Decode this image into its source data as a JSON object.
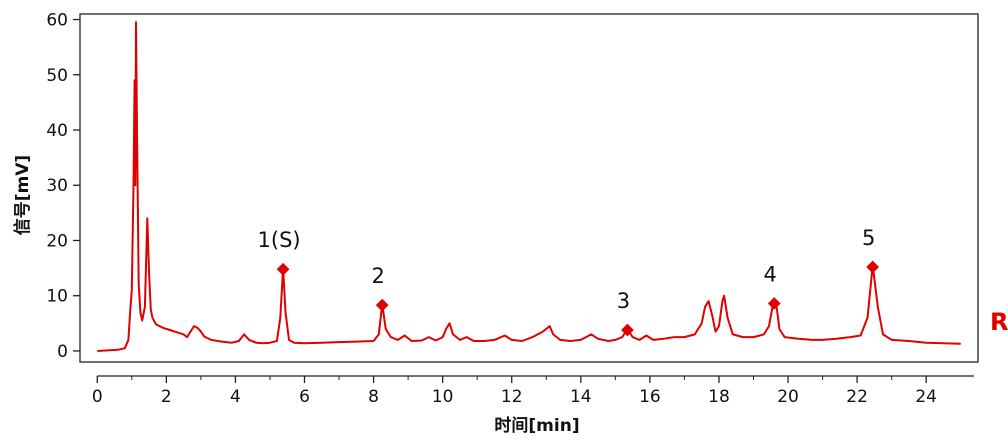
{
  "chart_data": {
    "type": "line",
    "title": "",
    "xlabel": "时间[min]",
    "ylabel": "信号[mV]",
    "xlim": [
      -0.5,
      25.5
    ],
    "ylim": [
      -2,
      61
    ],
    "x_ticks": [
      0,
      2,
      4,
      6,
      8,
      10,
      12,
      14,
      16,
      18,
      20,
      22,
      24
    ],
    "y_ticks": [
      0,
      10,
      20,
      30,
      40,
      50,
      60
    ],
    "grid": false,
    "line_color": "#e00000",
    "series": [
      {
        "values": [
          [
            0.0,
            0.0
          ],
          [
            0.3,
            0.1
          ],
          [
            0.6,
            0.2
          ],
          [
            0.8,
            0.5
          ],
          [
            0.9,
            2.0
          ],
          [
            0.95,
            7.0
          ],
          [
            1.0,
            11.0
          ],
          [
            1.05,
            30.0
          ],
          [
            1.08,
            49.0
          ],
          [
            1.1,
            30.0
          ],
          [
            1.12,
            59.5
          ],
          [
            1.15,
            40.0
          ],
          [
            1.2,
            12.0
          ],
          [
            1.25,
            7.0
          ],
          [
            1.3,
            5.5
          ],
          [
            1.38,
            8.0
          ],
          [
            1.45,
            24.0
          ],
          [
            1.5,
            14.0
          ],
          [
            1.55,
            7.5
          ],
          [
            1.6,
            6.0
          ],
          [
            1.7,
            4.8
          ],
          [
            1.9,
            4.2
          ],
          [
            2.1,
            3.8
          ],
          [
            2.3,
            3.4
          ],
          [
            2.5,
            3.0
          ],
          [
            2.6,
            2.5
          ],
          [
            2.7,
            3.5
          ],
          [
            2.8,
            4.5
          ],
          [
            2.9,
            4.2
          ],
          [
            3.0,
            3.5
          ],
          [
            3.1,
            2.6
          ],
          [
            3.3,
            2.0
          ],
          [
            3.6,
            1.7
          ],
          [
            3.9,
            1.5
          ],
          [
            4.1,
            1.8
          ],
          [
            4.25,
            3.0
          ],
          [
            4.4,
            2.0
          ],
          [
            4.6,
            1.5
          ],
          [
            4.8,
            1.4
          ],
          [
            5.0,
            1.5
          ],
          [
            5.2,
            1.8
          ],
          [
            5.3,
            6.0
          ],
          [
            5.38,
            15.0
          ],
          [
            5.45,
            7.0
          ],
          [
            5.55,
            2.0
          ],
          [
            5.7,
            1.5
          ],
          [
            6.0,
            1.4
          ],
          [
            6.5,
            1.5
          ],
          [
            7.0,
            1.6
          ],
          [
            7.5,
            1.7
          ],
          [
            8.0,
            1.8
          ],
          [
            8.15,
            3.0
          ],
          [
            8.25,
            8.5
          ],
          [
            8.35,
            4.0
          ],
          [
            8.5,
            2.5
          ],
          [
            8.7,
            2.0
          ],
          [
            8.9,
            2.8
          ],
          [
            9.1,
            1.8
          ],
          [
            9.4,
            1.9
          ],
          [
            9.6,
            2.5
          ],
          [
            9.8,
            1.9
          ],
          [
            10.0,
            2.5
          ],
          [
            10.1,
            4.0
          ],
          [
            10.2,
            5.0
          ],
          [
            10.3,
            3.0
          ],
          [
            10.5,
            2.0
          ],
          [
            10.7,
            2.5
          ],
          [
            10.9,
            1.8
          ],
          [
            11.2,
            1.8
          ],
          [
            11.5,
            2.0
          ],
          [
            11.8,
            2.8
          ],
          [
            12.0,
            2.0
          ],
          [
            12.3,
            1.8
          ],
          [
            12.6,
            2.5
          ],
          [
            12.9,
            3.5
          ],
          [
            13.0,
            4.0
          ],
          [
            13.1,
            4.5
          ],
          [
            13.2,
            3.0
          ],
          [
            13.4,
            2.0
          ],
          [
            13.7,
            1.8
          ],
          [
            14.0,
            2.0
          ],
          [
            14.3,
            3.0
          ],
          [
            14.5,
            2.2
          ],
          [
            14.8,
            1.8
          ],
          [
            15.0,
            2.0
          ],
          [
            15.2,
            2.5
          ],
          [
            15.35,
            4.0
          ],
          [
            15.5,
            2.5
          ],
          [
            15.7,
            2.0
          ],
          [
            15.9,
            2.8
          ],
          [
            16.1,
            2.0
          ],
          [
            16.4,
            2.2
          ],
          [
            16.7,
            2.5
          ],
          [
            17.0,
            2.5
          ],
          [
            17.3,
            3.0
          ],
          [
            17.5,
            5.0
          ],
          [
            17.6,
            8.0
          ],
          [
            17.7,
            9.0
          ],
          [
            17.8,
            6.5
          ],
          [
            17.9,
            3.5
          ],
          [
            18.0,
            4.5
          ],
          [
            18.1,
            9.0
          ],
          [
            18.15,
            10.0
          ],
          [
            18.25,
            6.0
          ],
          [
            18.4,
            3.0
          ],
          [
            18.7,
            2.5
          ],
          [
            19.0,
            2.5
          ],
          [
            19.3,
            3.0
          ],
          [
            19.45,
            4.5
          ],
          [
            19.55,
            8.0
          ],
          [
            19.65,
            9.0
          ],
          [
            19.75,
            4.0
          ],
          [
            19.9,
            2.5
          ],
          [
            20.3,
            2.2
          ],
          [
            20.7,
            2.0
          ],
          [
            21.0,
            2.0
          ],
          [
            21.4,
            2.2
          ],
          [
            21.8,
            2.5
          ],
          [
            22.1,
            2.8
          ],
          [
            22.3,
            6.0
          ],
          [
            22.45,
            15.5
          ],
          [
            22.6,
            8.0
          ],
          [
            22.75,
            3.0
          ],
          [
            23.0,
            2.0
          ],
          [
            23.5,
            1.8
          ],
          [
            24.0,
            1.5
          ],
          [
            24.5,
            1.4
          ],
          [
            25.0,
            1.3
          ]
        ]
      }
    ],
    "peak_markers": [
      {
        "label": "1(S)",
        "x": 5.38,
        "y": 14.8
      },
      {
        "label": "2",
        "x": 8.25,
        "y": 8.3
      },
      {
        "label": "3",
        "x": 15.35,
        "y": 3.8
      },
      {
        "label": "4",
        "x": 19.6,
        "y": 8.6
      },
      {
        "label": "5",
        "x": 22.45,
        "y": 15.2
      }
    ],
    "trace_tag": "R"
  }
}
